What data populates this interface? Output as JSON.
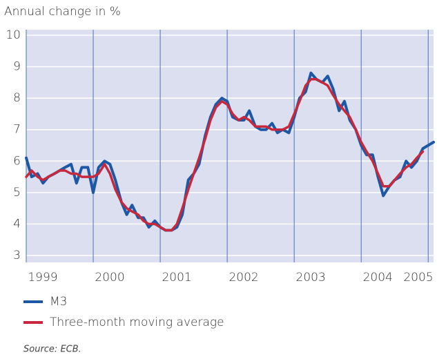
{
  "chart_data": {
    "type": "line",
    "y_axis_label": "Annual change in %",
    "source": "Source: ECB.",
    "x": [
      1999,
      1999.08,
      1999.17,
      1999.25,
      1999.33,
      1999.42,
      1999.5,
      1999.58,
      1999.67,
      1999.75,
      1999.83,
      1999.92,
      2000,
      2000.08,
      2000.17,
      2000.25,
      2000.33,
      2000.42,
      2000.5,
      2000.58,
      2000.67,
      2000.75,
      2000.83,
      2000.92,
      2001,
      2001.08,
      2001.17,
      2001.25,
      2001.33,
      2001.42,
      2001.5,
      2001.58,
      2001.67,
      2001.75,
      2001.83,
      2001.92,
      2002,
      2002.08,
      2002.17,
      2002.25,
      2002.33,
      2002.42,
      2002.5,
      2002.58,
      2002.67,
      2002.75,
      2002.83,
      2002.92,
      2003,
      2003.08,
      2003.17,
      2003.25,
      2003.33,
      2003.42,
      2003.5,
      2003.58,
      2003.67,
      2003.75,
      2003.83,
      2003.92,
      2004,
      2004.08,
      2004.17,
      2004.25,
      2004.33,
      2004.42,
      2004.5,
      2004.58,
      2004.67,
      2004.75,
      2004.83,
      2004.92,
      2005,
      2005.08
    ],
    "series": [
      {
        "name": "M3",
        "color": "#1d58a5",
        "values": [
          6.1,
          5.5,
          5.6,
          5.3,
          5.5,
          5.6,
          5.7,
          5.8,
          5.9,
          5.3,
          5.8,
          5.8,
          5.0,
          5.8,
          6.0,
          5.9,
          5.4,
          4.7,
          4.3,
          4.6,
          4.2,
          4.2,
          3.9,
          4.1,
          3.9,
          3.8,
          3.8,
          3.9,
          4.3,
          5.4,
          5.6,
          5.9,
          6.8,
          7.4,
          7.8,
          8.0,
          7.9,
          7.4,
          7.3,
          7.3,
          7.6,
          7.1,
          7.0,
          7.0,
          7.2,
          6.9,
          7.0,
          6.9,
          7.4,
          8.0,
          8.2,
          8.8,
          8.6,
          8.5,
          8.7,
          8.3,
          7.6,
          7.9,
          7.3,
          7.0,
          6.5,
          6.2,
          6.2,
          5.5,
          4.9,
          5.2,
          5.4,
          5.5,
          6.0,
          5.8,
          6.0,
          6.4,
          6.5,
          6.6
        ]
      },
      {
        "name": "Three-month moving average",
        "color": "#c7283c",
        "values": [
          5.5,
          5.7,
          5.5,
          5.4,
          5.5,
          5.6,
          5.7,
          5.7,
          5.6,
          5.6,
          5.5,
          5.5,
          5.5,
          5.6,
          5.9,
          5.6,
          5.1,
          4.7,
          4.5,
          4.4,
          4.3,
          4.1,
          4.0,
          4.0,
          3.9,
          3.8,
          3.8,
          4.0,
          4.5,
          5.1,
          5.6,
          6.1,
          6.7,
          7.3,
          7.7,
          7.9,
          7.8,
          7.5,
          7.3,
          7.4,
          7.3,
          7.1,
          7.1,
          7.1,
          7.0,
          7.0,
          7.0,
          7.1,
          7.5,
          7.9,
          8.4,
          8.6,
          8.6,
          8.5,
          8.4,
          8.1,
          7.8,
          7.6,
          7.4,
          7.0,
          6.6,
          6.3,
          6.0,
          5.6,
          5.2,
          5.2,
          5.4,
          5.6,
          5.8,
          5.9,
          6.1,
          6.3,
          null,
          null
        ]
      }
    ],
    "xlim": [
      1999,
      2005.08
    ],
    "xticks": [
      1999,
      2000,
      2001,
      2002,
      2003,
      2004,
      2005
    ],
    "ylim": [
      3,
      10
    ],
    "yticks": [
      3,
      4,
      5,
      6,
      7,
      8,
      9,
      10
    ],
    "grid": true
  }
}
